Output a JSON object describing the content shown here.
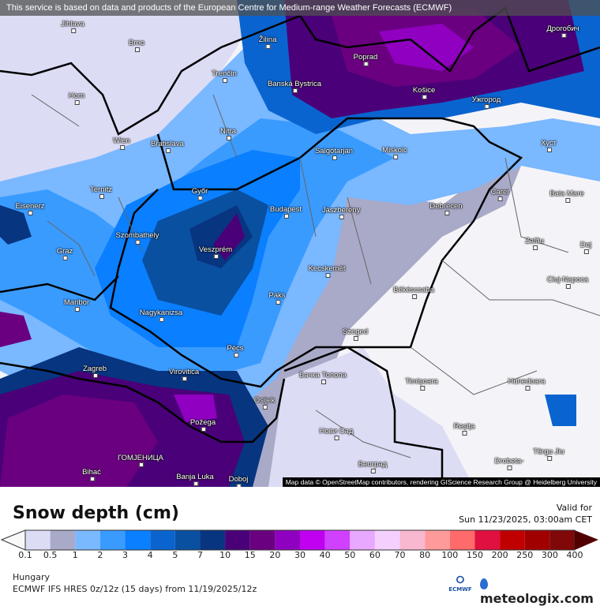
{
  "banner": "This service is based on data and products of the European Centre for Medium-range Weather Forecasts (ECMWF)",
  "attribution": "Map data © OpenStreetMap contributors, rendering GIScience Research Group @ Heidelberg University",
  "cities": [
    "Jihlava",
    "Brno",
    "Horn",
    "Wien",
    "Bratislava",
    "Trenčín",
    "Žilina",
    "Banská Bystrica",
    "Nitra",
    "Poprad",
    "Košice",
    "Ужгород",
    "Дрогобич",
    "Хуст",
    "Salgótarján",
    "Miskolc",
    "Győr",
    "Budapest",
    "Jászberény",
    "Debrecen",
    "Carei",
    "Baia Mare",
    "Ternitz",
    "Eisenerz",
    "Graz",
    "Szombathely",
    "Veszprém",
    "Zalău",
    "Kecskemét",
    "Dej",
    "Cluj-Napoca",
    "Maribor",
    "Paks",
    "Békéscsaba",
    "Nagykanizsa",
    "Szeged",
    "Pécs",
    "Zagreb",
    "Virovitica",
    "Бачка Топола",
    "Timișoara",
    "Hunedoara",
    "Osijek",
    "Požega",
    "Нови Сад",
    "Reșița",
    "Târgu Jiu",
    "ГОМЈЕНИЦА",
    "Banja Luka",
    "Bihać",
    "Doboj",
    "Београд",
    "Drobeta-"
  ],
  "title": "Snow depth (cm)",
  "valid_label": "Valid for",
  "valid_time": "Sun 11/23/2025, 03:00am CET",
  "legend": {
    "labels": [
      "0.1",
      "0.5",
      "1",
      "2",
      "3",
      "4",
      "5",
      "7",
      "10",
      "15",
      "20",
      "30",
      "40",
      "50",
      "60",
      "70",
      "80",
      "100",
      "150",
      "200",
      "250",
      "300",
      "400"
    ],
    "colors": [
      "#dcdcf5",
      "#a9a9c8",
      "#7ab8ff",
      "#3a9bff",
      "#0a7fff",
      "#0a64d0",
      "#0a50a0",
      "#073580",
      "#4a0078",
      "#6a0080",
      "#9000c0",
      "#c000f0",
      "#d040ff",
      "#e8a8ff",
      "#f4d0ff",
      "#f8b8d0",
      "#ff9a9a",
      "#ff6a6a",
      "#e01040",
      "#c00000",
      "#a00000",
      "#800808"
    ],
    "under_color": "#f8f8f8",
    "over_color": "#500000"
  },
  "region": "Hungary",
  "model": "ECMWF IFS HRES 0z/12z (15 days) from  11/19/2025/12z",
  "ecmwf_logo": "ECMWF",
  "brand": "meteologix.com"
}
